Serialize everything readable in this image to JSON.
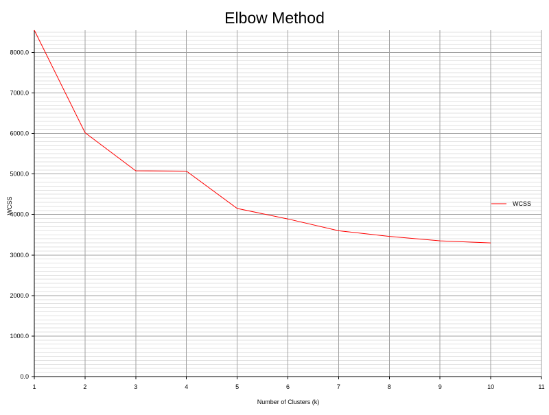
{
  "chart_data": {
    "type": "line",
    "title": "Elbow Method",
    "xlabel": "Number of Clusters (k)",
    "ylabel": "WCSS",
    "xlim": [
      1,
      11
    ],
    "ylim": [
      0,
      8550
    ],
    "xticks": [
      "1",
      "2",
      "3",
      "4",
      "5",
      "6",
      "7",
      "8",
      "9",
      "10",
      "11"
    ],
    "yticks": [
      "0.0",
      "1000.0",
      "2000.0",
      "3000.0",
      "4000.0",
      "5000.0",
      "6000.0",
      "7000.0",
      "8000.0"
    ],
    "grid": true,
    "legend_position": "right",
    "series": [
      {
        "name": "WCSS",
        "color": "#ff0000",
        "x": [
          1,
          2,
          3,
          4,
          5,
          6,
          7,
          8,
          9,
          10
        ],
        "y": [
          8550,
          6020,
          5080,
          5070,
          4150,
          3890,
          3600,
          3460,
          3350,
          3300
        ]
      }
    ]
  }
}
